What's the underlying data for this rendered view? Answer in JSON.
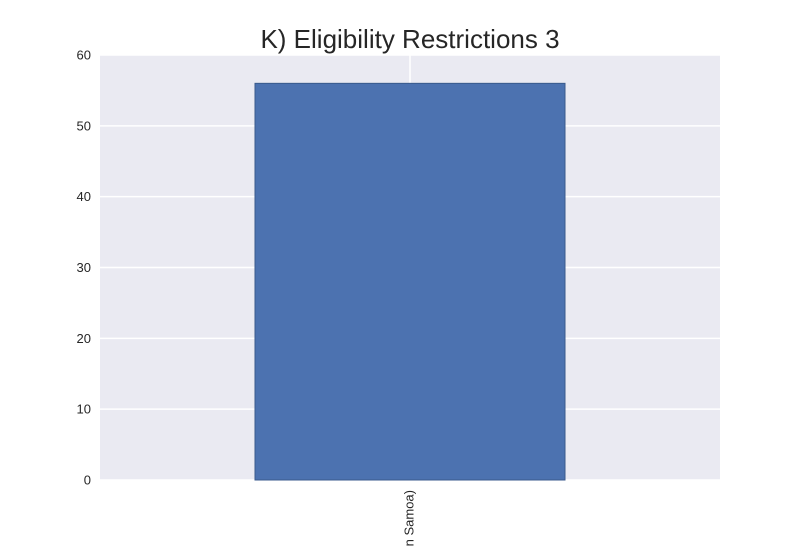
{
  "chart_data": {
    "type": "bar",
    "title": "K) Eligibility Restrictions 3",
    "xlabel": "",
    "ylabel": "",
    "categories": [
      "n Samoa)"
    ],
    "values": [
      56
    ],
    "ylim": [
      0,
      60
    ],
    "yticks": [
      0,
      10,
      20,
      30,
      40,
      50,
      60
    ],
    "grid": true,
    "legend": "none",
    "colors": {
      "plot_background": "#eaeaf2",
      "grid": "#ffffff",
      "bar_fill": "#4c72b0",
      "bar_edge": "#3a5a8c",
      "text": "#262626"
    }
  }
}
